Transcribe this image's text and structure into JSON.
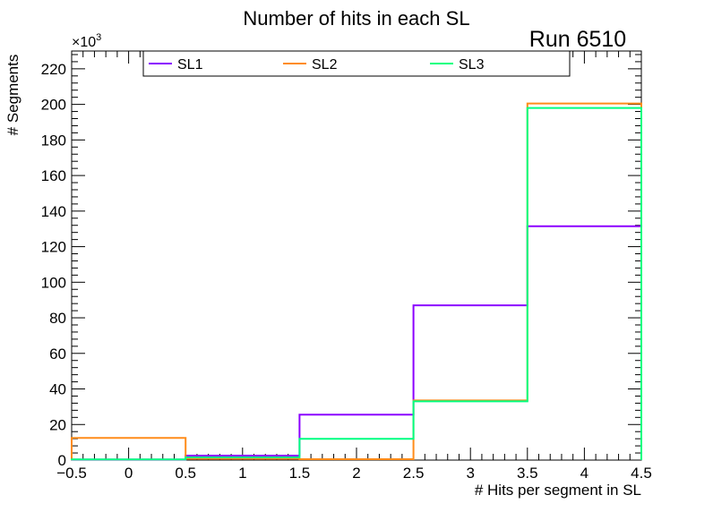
{
  "chart_data": {
    "type": "step-histogram",
    "title": "Number of hits in each SL",
    "annotation": "Run 6510",
    "xlabel": "# Hits per segment in SL",
    "ylabel": "# Segments",
    "y_multiplier_label": "×10",
    "y_multiplier_exponent": "3",
    "xlim": [
      -0.5,
      4.5
    ],
    "ylim": [
      0,
      230
    ],
    "x_ticks": [
      -0.5,
      0,
      0.5,
      1,
      1.5,
      2,
      2.5,
      3,
      3.5,
      4,
      4.5
    ],
    "x_tick_labels": [
      "−0.5",
      "0",
      "0.5",
      "1",
      "1.5",
      "2",
      "2.5",
      "3",
      "3.5",
      "4",
      "4.5"
    ],
    "y_ticks": [
      0,
      20,
      40,
      60,
      80,
      100,
      120,
      140,
      160,
      180,
      200,
      220
    ],
    "y_tick_labels": [
      "0",
      "20",
      "40",
      "60",
      "80",
      "100",
      "120",
      "140",
      "160",
      "180",
      "200",
      "220"
    ],
    "bin_edges": [
      -0.5,
      0.5,
      1.5,
      2.5,
      3.5,
      4.5
    ],
    "series": [
      {
        "name": "SL1",
        "color": "#8b00ff",
        "values": [
          0.3,
          2.5,
          25.5,
          87,
          131.5
        ]
      },
      {
        "name": "SL2",
        "color": "#ff8c1a",
        "values": [
          12.5,
          0.8,
          0.5,
          33.5,
          200.5
        ]
      },
      {
        "name": "SL3",
        "color": "#00ff80",
        "values": [
          0.4,
          1.5,
          12,
          33,
          198
        ]
      }
    ],
    "legend_position": "top"
  }
}
